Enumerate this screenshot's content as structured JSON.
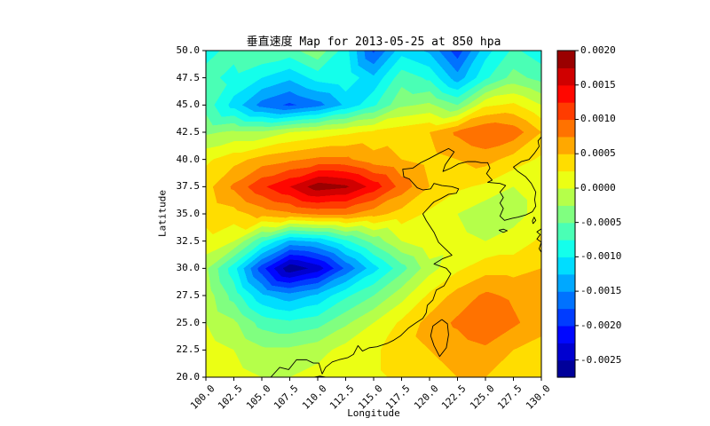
{
  "figure": {
    "title": "垂直速度 Map for 2013-05-25 at 850 hpa",
    "xlabel": "Longitude",
    "ylabel": "Latitude",
    "background": "#ffffff"
  },
  "chart_data": {
    "type": "heatmap",
    "subtype": "filled-contour-map",
    "title": "垂直速度 Map for 2013-05-25 at 850 hpa",
    "xlabel": "Longitude",
    "ylabel": "Latitude",
    "xlim": [
      100,
      130
    ],
    "ylim": [
      20,
      50
    ],
    "x_ticks": [
      "100.0",
      "102.5",
      "105.0",
      "107.5",
      "110.0",
      "112.5",
      "115.0",
      "117.5",
      "120.0",
      "122.5",
      "125.0",
      "127.5",
      "130.0"
    ],
    "y_ticks": [
      "50.0",
      "47.5",
      "45.0",
      "42.5",
      "40.0",
      "37.5",
      "35.0",
      "32.5",
      "30.0",
      "27.5",
      "25.0",
      "22.5",
      "20.0"
    ],
    "colormap": "jet",
    "levels": {
      "min": -0.00275,
      "max": 0.002,
      "step": 0.00025
    },
    "colorbar": {
      "tick_values": [
        0.002,
        0.0015,
        0.001,
        0.0005,
        0.0,
        -0.0005,
        -0.001,
        -0.0015,
        -0.002,
        -0.0025
      ],
      "tick_labels": [
        "0.0020",
        "0.0015",
        "0.0010",
        "0.0005",
        "0.0000",
        "-0.0005",
        "-0.0010",
        "-0.0015",
        "-0.0020",
        "-0.0025"
      ]
    },
    "grid_lon": [
      100,
      102.5,
      105,
      107.5,
      110,
      112.5,
      115,
      117.5,
      120,
      122.5,
      125,
      127.5,
      130
    ],
    "grid_lat": [
      50,
      47.5,
      45,
      42.5,
      40,
      37.5,
      35,
      32.5,
      30,
      27.5,
      25,
      22.5,
      20
    ],
    "values_scale": 0.0001,
    "values": [
      [
        -8,
        -7,
        -5,
        -6,
        -3,
        -9,
        -18,
        -11,
        -13,
        -19,
        -11,
        -7,
        -9
      ],
      [
        -7,
        -8,
        -10,
        -12,
        -9,
        -8,
        -12,
        -6,
        -8,
        -14,
        -8,
        -4,
        -6
      ],
      [
        -6,
        -11,
        -16,
        -18,
        -16,
        -12,
        -8,
        -3,
        -2,
        -5,
        2,
        3,
        0
      ],
      [
        -3,
        -2,
        -2,
        0,
        1,
        2,
        3,
        4,
        5,
        8,
        10,
        9,
        5
      ],
      [
        2,
        4,
        6,
        7,
        8,
        8,
        6,
        5,
        4,
        5,
        6,
        4,
        2
      ],
      [
        4,
        8,
        12,
        15,
        19,
        18,
        14,
        9,
        5,
        3,
        2,
        0,
        1
      ],
      [
        3,
        4,
        6,
        7,
        8,
        8,
        6,
        4,
        2,
        0,
        -2,
        -1,
        1
      ],
      [
        2,
        0,
        -7,
        -13,
        -12,
        -8,
        -4,
        0,
        2,
        1,
        0,
        1,
        3
      ],
      [
        -2,
        -9,
        -19,
        -27,
        -24,
        -17,
        -11,
        -6,
        -1,
        2,
        4,
        4,
        5
      ],
      [
        -1,
        -6,
        -12,
        -14,
        -12,
        -8,
        -5,
        -1,
        3,
        6,
        8,
        7,
        5
      ],
      [
        0,
        -2,
        -6,
        -7,
        -6,
        -3,
        0,
        3,
        6,
        8,
        10,
        8,
        6
      ],
      [
        1,
        0,
        -2,
        -2,
        -1,
        1,
        2,
        4,
        5,
        6,
        7,
        5,
        4
      ],
      [
        1,
        1,
        0,
        0,
        1,
        2,
        2,
        3,
        4,
        5,
        5,
        4,
        3
      ]
    ],
    "coastline": [
      [
        [
          105.8,
          20.0
        ],
        [
          106.6,
          20.9
        ],
        [
          107.4,
          20.7
        ],
        [
          108.1,
          21.6
        ],
        [
          109.0,
          21.6
        ],
        [
          109.6,
          21.3
        ],
        [
          110.1,
          21.3
        ],
        [
          110.4,
          20.3
        ],
        [
          110.7,
          20.9
        ],
        [
          111.3,
          21.4
        ],
        [
          111.9,
          21.6
        ],
        [
          112.7,
          21.8
        ],
        [
          113.2,
          22.1
        ],
        [
          113.6,
          22.9
        ],
        [
          114.0,
          22.4
        ],
        [
          114.6,
          22.7
        ],
        [
          115.3,
          22.8
        ],
        [
          116.2,
          23.1
        ],
        [
          116.8,
          23.4
        ],
        [
          117.4,
          23.8
        ],
        [
          118.1,
          24.5
        ],
        [
          118.8,
          25.0
        ],
        [
          119.4,
          25.4
        ],
        [
          119.7,
          25.9
        ],
        [
          119.8,
          26.6
        ],
        [
          120.3,
          27.1
        ],
        [
          120.6,
          28.0
        ],
        [
          121.3,
          28.4
        ],
        [
          121.9,
          29.5
        ],
        [
          121.5,
          30.0
        ],
        [
          120.4,
          30.4
        ],
        [
          121.2,
          30.9
        ],
        [
          122.0,
          31.2
        ],
        [
          121.3,
          31.9
        ],
        [
          120.8,
          32.4
        ],
        [
          120.4,
          33.3
        ],
        [
          119.7,
          34.4
        ],
        [
          119.4,
          35.0
        ],
        [
          120.2,
          35.9
        ],
        [
          120.4,
          36.1
        ],
        [
          121.0,
          36.4
        ],
        [
          121.7,
          36.8
        ],
        [
          122.4,
          36.9
        ],
        [
          122.6,
          37.3
        ],
        [
          122.0,
          37.5
        ],
        [
          121.1,
          37.6
        ],
        [
          120.4,
          37.8
        ],
        [
          120.1,
          37.3
        ],
        [
          119.4,
          37.2
        ],
        [
          118.9,
          37.4
        ],
        [
          118.2,
          38.2
        ],
        [
          117.7,
          38.4
        ],
        [
          117.6,
          39.1
        ],
        [
          118.5,
          39.2
        ],
        [
          119.2,
          39.7
        ],
        [
          120.0,
          40.1
        ],
        [
          120.9,
          40.6
        ],
        [
          121.7,
          41.0
        ],
        [
          122.2,
          40.7
        ],
        [
          121.8,
          40.1
        ],
        [
          121.4,
          39.5
        ],
        [
          121.2,
          38.9
        ],
        [
          121.9,
          39.2
        ],
        [
          122.6,
          39.6
        ],
        [
          123.4,
          39.8
        ],
        [
          124.1,
          39.8
        ],
        [
          124.6,
          39.7
        ],
        [
          125.2,
          39.7
        ],
        [
          125.4,
          39.2
        ],
        [
          125.1,
          38.7
        ],
        [
          125.6,
          38.1
        ],
        [
          125.2,
          37.9
        ],
        [
          126.3,
          37.8
        ],
        [
          126.8,
          37.6
        ],
        [
          126.3,
          37.0
        ],
        [
          126.6,
          36.5
        ],
        [
          126.3,
          36.0
        ],
        [
          126.6,
          35.5
        ],
        [
          126.3,
          34.8
        ],
        [
          126.7,
          34.4
        ],
        [
          127.4,
          34.6
        ],
        [
          127.9,
          34.7
        ],
        [
          128.6,
          34.9
        ],
        [
          129.2,
          35.2
        ],
        [
          129.5,
          35.7
        ],
        [
          129.4,
          36.3
        ],
        [
          129.5,
          37.0
        ],
        [
          129.1,
          37.8
        ],
        [
          128.6,
          38.4
        ],
        [
          127.9,
          38.9
        ],
        [
          127.5,
          39.3
        ],
        [
          128.2,
          39.8
        ],
        [
          128.9,
          40.0
        ],
        [
          129.4,
          40.6
        ],
        [
          129.8,
          41.2
        ],
        [
          129.7,
          41.7
        ],
        [
          130.1,
          42.2
        ]
      ],
      [
        [
          121.1,
          25.3
        ],
        [
          120.3,
          24.7
        ],
        [
          120.1,
          23.8
        ],
        [
          120.4,
          22.9
        ],
        [
          120.9,
          21.9
        ],
        [
          121.5,
          22.7
        ],
        [
          121.7,
          23.9
        ],
        [
          121.6,
          24.9
        ],
        [
          121.1,
          25.3
        ]
      ],
      [
        [
          126.2,
          33.5
        ],
        [
          126.6,
          33.3
        ],
        [
          126.95,
          33.45
        ],
        [
          126.6,
          33.6
        ],
        [
          126.2,
          33.5
        ]
      ],
      [
        [
          129.25,
          34.1
        ],
        [
          129.5,
          34.4
        ],
        [
          129.35,
          34.7
        ],
        [
          129.2,
          34.35
        ],
        [
          129.25,
          34.1
        ]
      ],
      [
        [
          130.1,
          31.3
        ],
        [
          129.8,
          31.8
        ],
        [
          130.0,
          32.4
        ],
        [
          129.6,
          32.7
        ],
        [
          129.9,
          33.1
        ],
        [
          129.6,
          33.35
        ],
        [
          130.1,
          33.7
        ]
      ],
      [
        [
          109.7,
          20.0
        ],
        [
          110.2,
          20.1
        ],
        [
          110.7,
          20.0
        ]
      ]
    ]
  }
}
